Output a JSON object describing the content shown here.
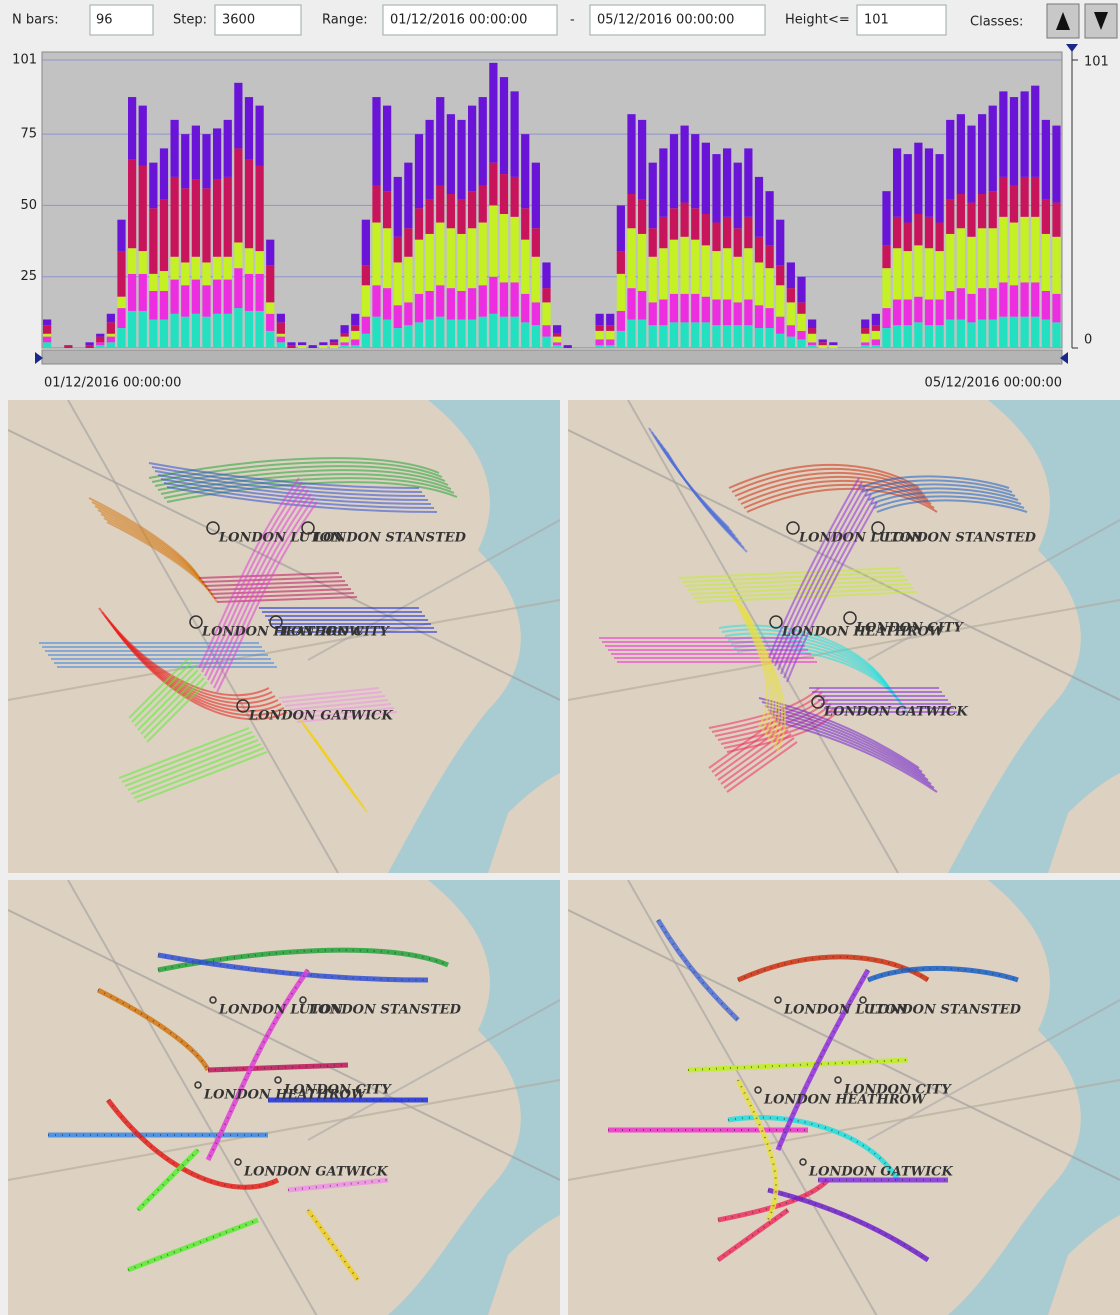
{
  "controls": {
    "n_bars_label": "N bars:",
    "n_bars": 96,
    "step_label": "Step:",
    "step": 3600,
    "range_label": "Range:",
    "range_from": "01/12/2016 00:00:00",
    "range_separator": "-",
    "range_to": "05/12/2016 00:00:00",
    "height_label": "Height<=",
    "height": 101,
    "classes_label": "Classes:"
  },
  "chart_data": {
    "type": "bar",
    "stacked": true,
    "ylim": [
      0,
      101
    ],
    "yticks": [
      25,
      50,
      75,
      101
    ],
    "y2lim": [
      0,
      101
    ],
    "y2ticks": [
      0,
      101
    ],
    "grid": true,
    "x_labels": [
      "01/12/2016 00:00:00",
      "05/12/2016 00:00:00"
    ],
    "series": [
      {
        "color": "#22e0c0",
        "values": [
          2,
          0,
          0,
          0,
          0,
          1,
          2,
          7,
          13,
          13,
          10,
          10,
          12,
          11,
          12,
          11,
          12,
          12,
          14,
          13,
          13,
          6,
          2,
          0,
          0,
          0,
          0,
          0,
          1,
          1,
          5,
          11,
          10,
          7,
          8,
          9,
          10,
          11,
          10,
          10,
          10,
          11,
          12,
          11,
          11,
          9,
          8,
          4,
          1,
          0,
          0,
          0,
          1,
          1,
          6,
          10,
          10,
          8,
          8,
          9,
          9,
          9,
          9,
          8,
          8,
          8,
          8,
          7,
          7,
          5,
          4,
          3,
          1,
          0,
          0,
          0,
          0,
          1,
          1,
          7,
          8,
          8,
          9,
          8,
          8,
          10,
          10,
          9,
          10,
          10,
          11,
          11,
          11,
          11,
          10,
          9
        ]
      },
      {
        "color": "#ec2ee0",
        "values": [
          2,
          0,
          0,
          0,
          0,
          1,
          2,
          7,
          13,
          13,
          10,
          10,
          12,
          11,
          12,
          11,
          12,
          12,
          14,
          13,
          13,
          6,
          2,
          0,
          0,
          0,
          0,
          0,
          1,
          2,
          6,
          11,
          11,
          8,
          8,
          10,
          10,
          11,
          11,
          10,
          11,
          11,
          13,
          12,
          12,
          10,
          8,
          4,
          1,
          0,
          0,
          0,
          2,
          2,
          7,
          11,
          10,
          8,
          9,
          10,
          10,
          10,
          9,
          9,
          9,
          8,
          9,
          8,
          7,
          6,
          4,
          3,
          1,
          0,
          0,
          0,
          0,
          1,
          2,
          7,
          9,
          9,
          9,
          9,
          9,
          10,
          11,
          10,
          11,
          11,
          12,
          11,
          12,
          12,
          10,
          10
        ]
      },
      {
        "color": "#c4f024",
        "values": [
          1,
          0,
          0,
          0,
          0,
          0,
          1,
          4,
          9,
          8,
          6,
          7,
          8,
          8,
          8,
          8,
          8,
          8,
          9,
          9,
          8,
          4,
          1,
          0,
          1,
          0,
          1,
          1,
          2,
          3,
          11,
          22,
          21,
          15,
          16,
          19,
          20,
          22,
          21,
          20,
          21,
          22,
          25,
          24,
          23,
          19,
          16,
          8,
          2,
          0,
          0,
          0,
          3,
          3,
          13,
          21,
          20,
          16,
          18,
          19,
          20,
          19,
          18,
          17,
          18,
          16,
          18,
          15,
          14,
          11,
          8,
          6,
          3,
          1,
          1,
          0,
          0,
          3,
          3,
          14,
          18,
          17,
          18,
          18,
          17,
          20,
          21,
          20,
          21,
          21,
          23,
          22,
          23,
          23,
          20,
          20
        ]
      },
      {
        "color": "#c8145a",
        "values": [
          3,
          0,
          1,
          0,
          1,
          2,
          4,
          16,
          31,
          30,
          23,
          25,
          28,
          26,
          27,
          26,
          27,
          28,
          33,
          31,
          30,
          13,
          4,
          1,
          0,
          0,
          0,
          1,
          1,
          2,
          7,
          13,
          13,
          9,
          10,
          11,
          12,
          13,
          12,
          12,
          13,
          13,
          15,
          14,
          14,
          11,
          10,
          5,
          1,
          0,
          0,
          0,
          2,
          2,
          8,
          12,
          12,
          10,
          11,
          11,
          12,
          11,
          11,
          10,
          11,
          10,
          11,
          9,
          8,
          7,
          5,
          4,
          2,
          1,
          0,
          0,
          0,
          2,
          2,
          8,
          11,
          10,
          11,
          11,
          10,
          12,
          12,
          12,
          12,
          13,
          14,
          13,
          14,
          14,
          12,
          12
        ]
      },
      {
        "color": "#6a14d8",
        "values": [
          2,
          0,
          0,
          0,
          1,
          1,
          3,
          11,
          22,
          21,
          16,
          18,
          20,
          19,
          19,
          19,
          18,
          20,
          23,
          22,
          21,
          9,
          3,
          1,
          1,
          1,
          1,
          1,
          3,
          4,
          16,
          31,
          30,
          21,
          23,
          26,
          28,
          31,
          28,
          28,
          30,
          31,
          35,
          34,
          30,
          26,
          23,
          9,
          3,
          1,
          0,
          0,
          4,
          4,
          16,
          28,
          28,
          23,
          24,
          26,
          27,
          26,
          25,
          24,
          24,
          23,
          24,
          21,
          19,
          16,
          9,
          9,
          3,
          1,
          1,
          0,
          0,
          3,
          4,
          19,
          24,
          24,
          25,
          24,
          24,
          28,
          28,
          27,
          28,
          30,
          30,
          31,
          30,
          32,
          28,
          27
        ]
      }
    ]
  },
  "map_panels": [
    {
      "airports": [
        "LONDON LUTON",
        "LONDON STANSTED",
        "LONDON HEATHROW",
        "LONDON CITY",
        "LONDON GATWICK"
      ]
    },
    {
      "airports": [
        "LONDON LUTON",
        "LONDON STANSTED",
        "LONDON HEATHROW",
        "LONDON CITY",
        "LONDON GATWICK"
      ]
    },
    {
      "airports": [
        "LONDON LUTON",
        "LONDON STANSTED",
        "LONDON HEATHROW",
        "LONDON CITY",
        "LONDON GATWICK"
      ]
    },
    {
      "airports": [
        "LONDON LUTON",
        "LONDON STANSTED",
        "LONDON HEATHROW",
        "LONDON CITY",
        "LONDON GATWICK"
      ]
    }
  ]
}
